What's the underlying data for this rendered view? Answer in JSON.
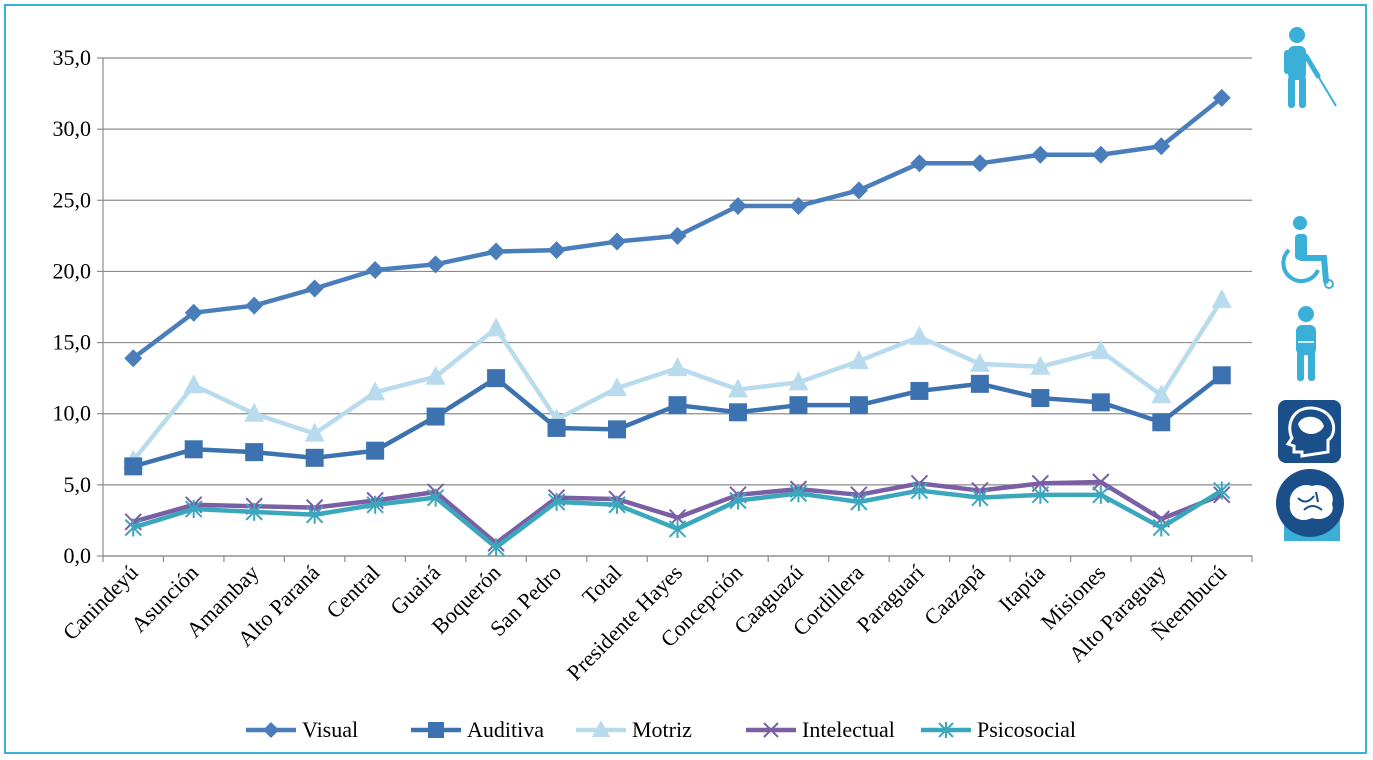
{
  "chart_data": {
    "type": "line",
    "categories": [
      "Canindeyú",
      "Asunción",
      "Amambay",
      "Alto Paraná",
      "Central",
      "Guairá",
      "Boquerón",
      "San Pedro",
      "Total",
      "Presidente Hayes",
      "Concepción",
      "Caaguazú",
      "Cordillera",
      "Paraguarí",
      "Caazapá",
      "Itapúa",
      "Misiones",
      "Alto Paraguay",
      "Ñeembucú"
    ],
    "ylim": [
      0,
      35
    ],
    "yticks": [
      "0,0",
      "5,0",
      "10,0",
      "15,0",
      "20,0",
      "25,0",
      "30,0",
      "35,0"
    ],
    "grid": true,
    "legend_position": "bottom",
    "series": [
      {
        "name": "Visual",
        "color": "#4a7ebb",
        "marker": "diamond",
        "values": [
          13.9,
          17.1,
          17.6,
          18.8,
          20.1,
          20.5,
          21.4,
          21.5,
          22.1,
          22.5,
          24.6,
          24.6,
          25.7,
          27.6,
          27.6,
          28.2,
          28.2,
          28.8,
          32.2
        ]
      },
      {
        "name": "Auditiva",
        "color": "#3d72b0",
        "marker": "square",
        "values": [
          6.3,
          7.5,
          7.3,
          6.9,
          7.4,
          9.8,
          12.5,
          9.0,
          8.9,
          10.6,
          10.1,
          10.6,
          10.6,
          11.6,
          12.1,
          11.1,
          10.8,
          9.4,
          12.7
        ]
      },
      {
        "name": "Motriz",
        "color": "#b8dcee",
        "marker": "triangle",
        "values": [
          6.7,
          12.0,
          10.0,
          8.6,
          11.5,
          12.6,
          16.0,
          9.6,
          11.8,
          13.2,
          11.7,
          12.2,
          13.7,
          15.4,
          13.5,
          13.3,
          14.4,
          11.3,
          18.0
        ]
      },
      {
        "name": "Intelectual",
        "color": "#7b5fa5",
        "marker": "x",
        "values": [
          2.4,
          3.6,
          3.5,
          3.4,
          3.9,
          4.5,
          0.9,
          4.1,
          4.0,
          2.7,
          4.3,
          4.7,
          4.3,
          5.1,
          4.6,
          5.1,
          5.2,
          2.6,
          4.3
        ]
      },
      {
        "name": "Psicosocial",
        "color": "#3aa7bd",
        "marker": "star",
        "values": [
          2.0,
          3.3,
          3.1,
          2.9,
          3.6,
          4.1,
          0.6,
          3.8,
          3.6,
          1.9,
          3.9,
          4.4,
          3.8,
          4.6,
          4.1,
          4.3,
          4.3,
          2.0,
          4.6
        ]
      }
    ]
  },
  "icons": [
    "blind-person-icon",
    "wheelchair-icon",
    "standing-person-icon",
    "head-profile-icon",
    "brain-icon"
  ]
}
